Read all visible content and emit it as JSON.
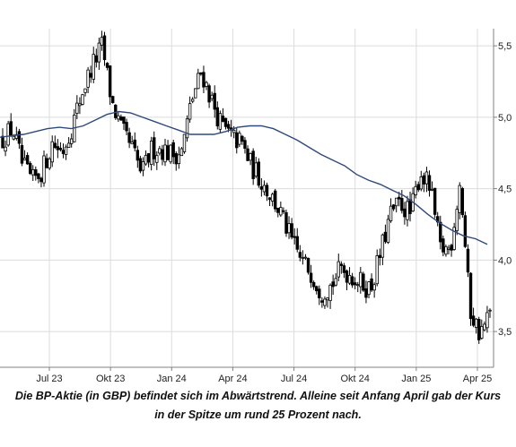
{
  "caption": {
    "line1": "Die BP-Aktie (in GBP) befindet sich im Abwärtstrend. Alleine seit Anfang April gab der Kurs",
    "line2": "in der Spitze um rund 25 Prozent nach."
  },
  "colors": {
    "candle_up_fill": "#ffffff",
    "candle_down_fill": "#000000",
    "candle_stroke": "#000000",
    "moving_average": "#2e4a7a",
    "grid": "#dcdcdc",
    "axis": "#808080",
    "tick_text": "#222222"
  },
  "chart_data": {
    "type": "candlestick",
    "grid": true,
    "y_axis_side": "right",
    "ylim": [
      3.25,
      5.62
    ],
    "y_ticks": [
      {
        "value": 5.5,
        "label": "5,5"
      },
      {
        "value": 5.0,
        "label": "5,0"
      },
      {
        "value": 4.5,
        "label": "4,5"
      },
      {
        "value": 4.0,
        "label": "4,0"
      },
      {
        "value": 3.5,
        "label": "3,5"
      }
    ],
    "x_ticks": [
      "Jul 23",
      "Okt 23",
      "Jan 24",
      "Apr 24",
      "Jul 24",
      "Okt 24",
      "Jan 25",
      "Apr 25"
    ],
    "price_path": [
      4.85,
      4.92,
      4.66,
      4.55,
      4.63,
      4.82,
      4.76,
      4.94,
      5.18,
      5.36,
      5.5,
      5.1,
      4.9,
      4.78,
      4.6,
      4.78,
      4.78,
      4.74,
      4.76,
      5.12,
      5.32,
      5.12,
      4.94,
      4.86,
      4.82,
      4.66,
      4.56,
      4.45,
      4.32,
      4.14,
      4.0,
      3.92,
      3.78,
      3.82,
      3.94,
      3.9,
      3.84,
      3.8,
      4.05,
      4.32,
      4.4,
      4.32,
      4.62,
      4.5,
      4.08,
      4.08,
      4.55,
      3.65,
      3.48,
      3.62
    ],
    "moving_average_200d": [
      4.86,
      4.87,
      4.88,
      4.9,
      4.92,
      4.93,
      4.92,
      4.94,
      4.98,
      5.02,
      5.04,
      5.03,
      5.0,
      4.97,
      4.94,
      4.91,
      4.88,
      4.88,
      4.88,
      4.9,
      4.93,
      4.94,
      4.94,
      4.92,
      4.88,
      4.84,
      4.79,
      4.74,
      4.7,
      4.66,
      4.6,
      4.56,
      4.53,
      4.49,
      4.45,
      4.39,
      4.32,
      4.26,
      4.21,
      4.17,
      4.15,
      4.11
    ]
  }
}
